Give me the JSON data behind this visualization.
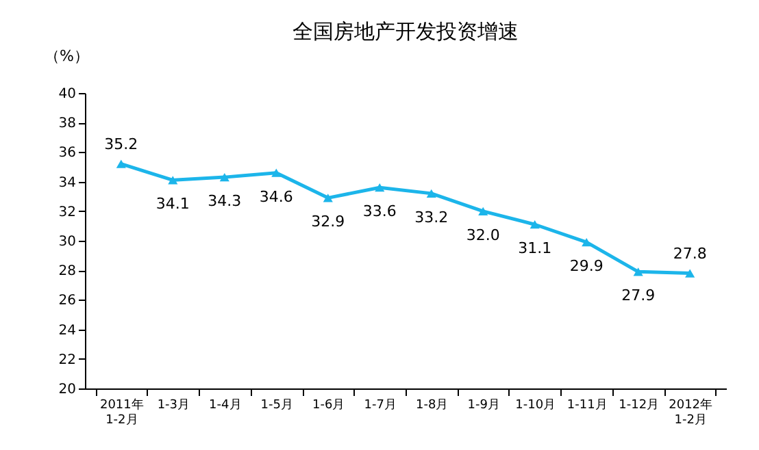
{
  "chart_data": {
    "type": "line",
    "title": "全国房地产开发投资增速",
    "ylabel": "（%）",
    "categories": [
      "2011年\n1-2月",
      "1-3月",
      "1-4月",
      "1-5月",
      "1-6月",
      "1-7月",
      "1-8月",
      "1-9月",
      "1-10月",
      "1-11月",
      "1-12月",
      "2012年\n1-2月"
    ],
    "series": [
      {
        "color": "#1cb5ea",
        "values": [
          35.2,
          34.1,
          34.3,
          34.6,
          32.9,
          33.6,
          33.2,
          32.0,
          31.1,
          29.9,
          27.9,
          27.8
        ]
      }
    ],
    "value_labels": [
      "35.2",
      "34.1",
      "34.3",
      "34.6",
      "32.9",
      "33.6",
      "33.2",
      "32.0",
      "31.1",
      "29.9",
      "27.9",
      "27.8"
    ],
    "ylim": [
      20,
      40
    ],
    "yticks": [
      20,
      22,
      24,
      26,
      28,
      30,
      32,
      34,
      36,
      38,
      40
    ],
    "marker": "triangle",
    "grid": false,
    "legend": false
  }
}
